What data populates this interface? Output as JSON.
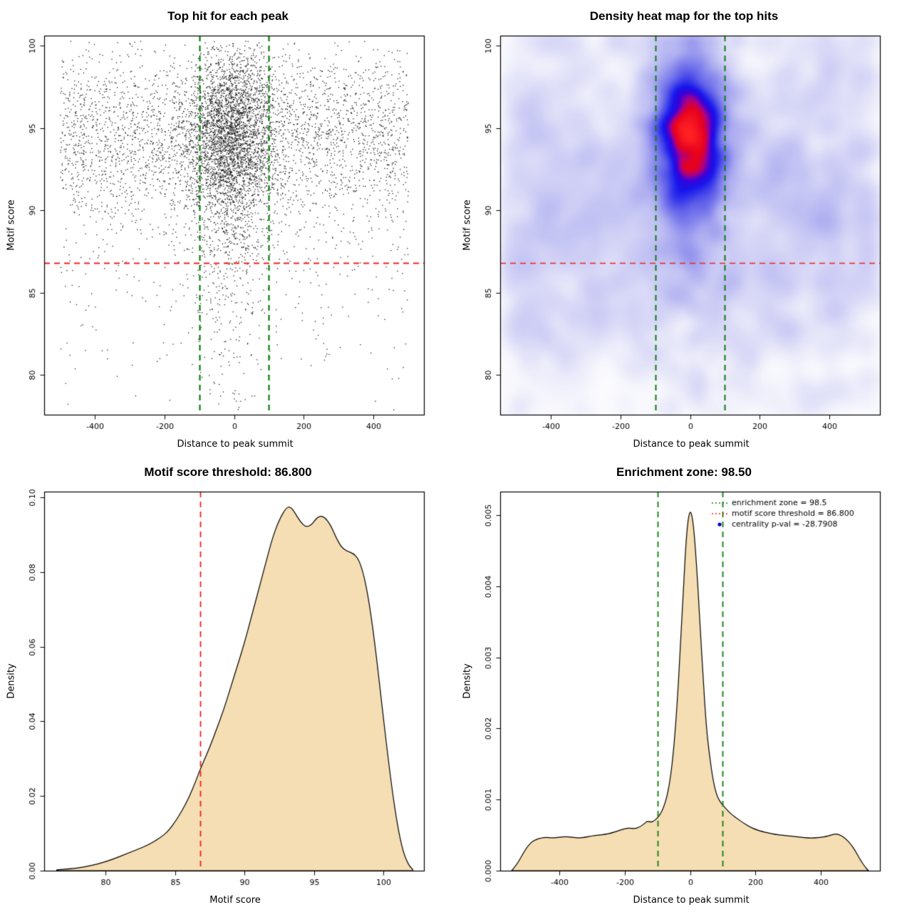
{
  "page": {
    "background": "#ffffff"
  },
  "colors": {
    "threshold_red": "#f02020",
    "zone_green": "#0a7d0a",
    "density_fill": "#f5deb3",
    "point_black": "#000000",
    "legend_point_blue": "#0000cd"
  },
  "values": {
    "motif_score_threshold": "86.800",
    "enrichment_zone_score": "98.50",
    "centrality_p_val": "-28.7908",
    "enrichment_zone_x": [
      -100,
      100
    ]
  },
  "chart_data": [
    {
      "type": "scatter",
      "title": "Top hit for each peak",
      "xlabel": "Distance to peak summit",
      "ylabel": "Motif score",
      "xlim": [
        -545,
        545
      ],
      "ylim": [
        77.6,
        100.6
      ],
      "xticks": [
        -400,
        -200,
        0,
        200,
        400
      ],
      "xtick_labels": [
        "-400",
        "-200",
        "0",
        "200",
        "400"
      ],
      "yticks": [
        80,
        85,
        90,
        95,
        100
      ],
      "ytick_labels": [
        "80",
        "85",
        "90",
        "95",
        "100"
      ],
      "point_color": "#000000",
      "n_points": 7000,
      "distribution": {
        "x_cluster_weight": 0.5,
        "x_cluster_mean": -10,
        "x_cluster_sd": 60,
        "x_range": [
          -500,
          500
        ],
        "y_main_weight": 0.85,
        "y_main_mean": 94.6,
        "y_main_sd": 2.7,
        "y_tail_mean": 88.5,
        "y_tail_sd": 4.8,
        "y_range": [
          77.8,
          100.3
        ]
      },
      "vlines": [
        {
          "x": -100,
          "color": "#0a7d0a",
          "width": 2.2
        },
        {
          "x": 100,
          "color": "#0a7d0a",
          "width": 2.2
        }
      ],
      "hlines": [
        {
          "y": 86.8,
          "color": "#f02020",
          "width": 2
        }
      ]
    },
    {
      "type": "heatmap",
      "title": "Density heat map for the top hits",
      "xlabel": "Distance to peak summit",
      "ylabel": "Motif score",
      "xlim": [
        -545,
        545
      ],
      "ylim": [
        77.6,
        100.6
      ],
      "xticks": [
        -400,
        -200,
        0,
        200,
        400
      ],
      "xtick_labels": [
        "-400",
        "-200",
        "0",
        "200",
        "400"
      ],
      "yticks": [
        80,
        85,
        90,
        95,
        100
      ],
      "ytick_labels": [
        "80",
        "85",
        "90",
        "95",
        "100"
      ],
      "colormap_stops": [
        [
          0.0,
          "#ffffff"
        ],
        [
          0.06,
          "#f4f4fc"
        ],
        [
          0.14,
          "#d9d9f7"
        ],
        [
          0.3,
          "#a8a8f0"
        ],
        [
          0.48,
          "#5e5eea"
        ],
        [
          0.62,
          "#1515ec"
        ],
        [
          0.7,
          "#3c00d8"
        ],
        [
          0.76,
          "#a8008c"
        ],
        [
          0.82,
          "#e6001e"
        ],
        [
          1.0,
          "#ff2222"
        ]
      ],
      "distribution": {
        "cluster_n": 2600,
        "cluster_x_mean": -5,
        "cluster_x_sd": 55,
        "cluster_y_mean": 94.8,
        "cluster_y_sd": 2.6,
        "cluster_y_tail_weight": 0.12,
        "cluster_y_tail_mean": 89.5,
        "cluster_y_tail_sd": 4,
        "background_n": 1500,
        "background_x_range": [
          -530,
          530
        ],
        "background_y_mean": 92,
        "background_y_sd": 5,
        "background_y_low_weight": 0.25,
        "background_y_low_mean": 84.5,
        "background_y_low_sd": 4,
        "y_range": [
          78,
          100.5
        ]
      },
      "vlines": [
        {
          "x": -100,
          "color": "#0a7d0a",
          "width": 2
        },
        {
          "x": 100,
          "color": "#0a7d0a",
          "width": 2
        }
      ],
      "hlines": [
        {
          "y": 86.8,
          "color": "#f02020",
          "width": 1.5
        }
      ]
    },
    {
      "type": "density",
      "title": "Motif score threshold: 86.800",
      "xlabel": "Motif score",
      "ylabel": "Density",
      "xlim": [
        75.6,
        102.9
      ],
      "ylim": [
        0,
        0.1015
      ],
      "xticks": [
        80,
        85,
        90,
        95,
        100
      ],
      "xtick_labels": [
        "80",
        "85",
        "90",
        "95",
        "100"
      ],
      "yticks": [
        0,
        0.02,
        0.04,
        0.06,
        0.08,
        0.1
      ],
      "ytick_labels": [
        "0.00",
        "0.02",
        "0.04",
        "0.06",
        "0.08",
        "0.10"
      ],
      "fill_color": "#f5deb3",
      "line_color": "#000000",
      "curve": {
        "x": [
          76.5,
          77.5,
          78.5,
          79.5,
          80.5,
          81.5,
          82.5,
          83,
          83.5,
          84,
          84.5,
          85,
          85.5,
          86,
          86.5,
          86.8,
          87.5,
          88,
          88.5,
          89,
          89.5,
          90,
          90.5,
          91,
          91.5,
          92,
          92.5,
          93,
          93.3,
          93.6,
          94,
          94.4,
          94.8,
          95.2,
          95.5,
          95.8,
          96.2,
          96.6,
          97,
          97.4,
          97.8,
          98.2,
          98.6,
          99,
          99.4,
          99.8,
          100.2,
          100.6,
          101,
          101.4,
          101.8,
          102.1
        ],
        "y": [
          0.0002,
          0.0005,
          0.001,
          0.0018,
          0.003,
          0.0045,
          0.006,
          0.0068,
          0.0078,
          0.009,
          0.0105,
          0.013,
          0.016,
          0.0195,
          0.024,
          0.027,
          0.033,
          0.038,
          0.043,
          0.049,
          0.055,
          0.061,
          0.068,
          0.075,
          0.082,
          0.089,
          0.094,
          0.0972,
          0.0975,
          0.096,
          0.0935,
          0.092,
          0.0925,
          0.0945,
          0.095,
          0.0945,
          0.0925,
          0.089,
          0.0865,
          0.0855,
          0.085,
          0.0835,
          0.079,
          0.071,
          0.06,
          0.047,
          0.034,
          0.022,
          0.012,
          0.005,
          0.0015,
          0.0003
        ]
      },
      "vlines": [
        {
          "x": 86.8,
          "color": "#f02020",
          "width": 1.8
        }
      ]
    },
    {
      "type": "density",
      "title": "Enrichment zone: 98.50",
      "xlabel": "Distance to peak summit",
      "ylabel": "Density",
      "xlim": [
        -580,
        580
      ],
      "ylim": [
        0,
        0.00533
      ],
      "xticks": [
        -400,
        -200,
        0,
        200,
        400
      ],
      "xtick_labels": [
        "-400",
        "-200",
        "0",
        "200",
        "400"
      ],
      "yticks": [
        0,
        0.001,
        0.002,
        0.003,
        0.004,
        0.005
      ],
      "ytick_labels": [
        "0.000",
        "0.001",
        "0.002",
        "0.003",
        "0.004",
        "0.005"
      ],
      "fill_color": "#f5deb3",
      "line_color": "#000000",
      "curve": {
        "x": [
          -545,
          -530,
          -515,
          -500,
          -485,
          -470,
          -455,
          -440,
          -420,
          -400,
          -380,
          -360,
          -340,
          -320,
          -300,
          -280,
          -260,
          -240,
          -220,
          -200,
          -185,
          -170,
          -155,
          -140,
          -130,
          -120,
          -110,
          -100,
          -90,
          -80,
          -70,
          -60,
          -50,
          -40,
          -30,
          -20,
          -10,
          0,
          10,
          20,
          30,
          40,
          50,
          60,
          70,
          80,
          90,
          100,
          110,
          120,
          130,
          145,
          160,
          180,
          200,
          220,
          240,
          260,
          280,
          300,
          320,
          340,
          360,
          380,
          400,
          415,
          430,
          445,
          460,
          475,
          490,
          505,
          520,
          535,
          545
        ],
        "y": [
          0,
          8e-05,
          0.0002,
          0.00032,
          0.0004,
          0.00044,
          0.00046,
          0.00047,
          0.00046,
          0.00047,
          0.00048,
          0.00047,
          0.00046,
          0.00047,
          0.00049,
          0.0005,
          0.00051,
          0.00053,
          0.00056,
          0.00059,
          0.0006,
          0.00059,
          0.00061,
          0.00066,
          0.0007,
          0.00068,
          0.0007,
          0.00074,
          0.0008,
          0.0009,
          0.00105,
          0.0013,
          0.0017,
          0.0023,
          0.0031,
          0.004,
          0.0048,
          0.0051,
          0.0049,
          0.0043,
          0.0035,
          0.0027,
          0.002,
          0.0016,
          0.00128,
          0.00108,
          0.00098,
          0.00092,
          0.00087,
          0.00082,
          0.00078,
          0.00073,
          0.00068,
          0.00062,
          0.00058,
          0.00055,
          0.00053,
          0.00051,
          0.0005,
          0.00049,
          0.00048,
          0.00047,
          0.00046,
          0.00046,
          0.00047,
          0.00048,
          0.0005,
          0.00052,
          0.0005,
          0.00045,
          0.00038,
          0.00028,
          0.00015,
          5e-05,
          0
        ]
      },
      "vlines": [
        {
          "x": -100,
          "color": "#0a7d0a",
          "width": 1.8
        },
        {
          "x": 100,
          "color": "#0a7d0a",
          "width": 1.8
        }
      ],
      "legend": {
        "position": "top-right",
        "items": [
          {
            "marker": "dotted-line",
            "color": "#0a7d0a",
            "label": "enrichment zone = 98.5"
          },
          {
            "marker": "dotted-line",
            "color": "#f02020",
            "label": "motif score threshold = 86.800"
          },
          {
            "marker": "point",
            "color": "#0000cd",
            "label": "centrality p-val = -28.7908"
          }
        ]
      }
    }
  ]
}
